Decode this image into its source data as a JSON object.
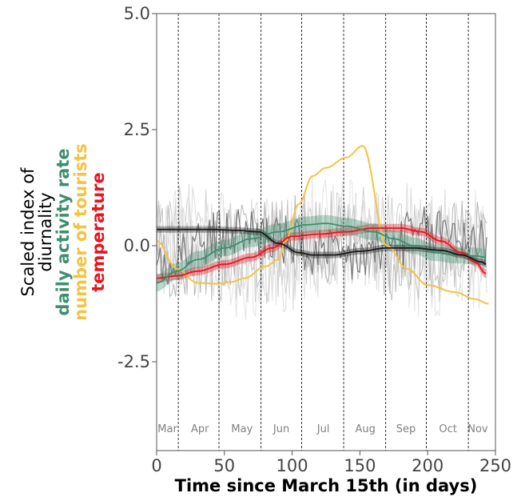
{
  "chart_data": {
    "type": "line",
    "title": "",
    "xlabel": "Time since March 15th (in days)",
    "ylabel_lines": [
      {
        "text": "Scaled index of",
        "color": "#000000",
        "bold": false
      },
      {
        "text": "diurnality",
        "color": "#000000",
        "bold": false
      },
      {
        "text": "daily activity rate",
        "color": "#3d8f6f",
        "bold": true
      },
      {
        "text": "number of tourists",
        "color": "#f5c242",
        "bold": true
      },
      {
        "text": "temperature",
        "color": "#e8141e",
        "bold": true
      }
    ],
    "xlim": [
      0,
      250
    ],
    "ylim": [
      -4.6,
      5.0
    ],
    "xticks": [
      {
        "v": 0,
        "label": "0"
      },
      {
        "v": 50,
        "label": "50"
      },
      {
        "v": 100,
        "label": "100"
      },
      {
        "v": 150,
        "label": "150"
      },
      {
        "v": 200,
        "label": "200"
      },
      {
        "v": 250,
        "label": "250"
      }
    ],
    "yticks": [
      {
        "v": 5.0,
        "label": "5.0"
      },
      {
        "v": 2.5,
        "label": "2.5"
      },
      {
        "v": 0.0,
        "label": "0.0"
      },
      {
        "v": -2.5,
        "label": "-2.5"
      }
    ],
    "grid": false,
    "month_boundaries": [
      16,
      46,
      77,
      107,
      138,
      169,
      199,
      230
    ],
    "month_labels": [
      {
        "x": 8,
        "label": "Mar"
      },
      {
        "x": 32,
        "label": "Apr"
      },
      {
        "x": 63,
        "label": "May"
      },
      {
        "x": 92,
        "label": "Jun"
      },
      {
        "x": 123,
        "label": "Jul"
      },
      {
        "x": 154,
        "label": "Aug"
      },
      {
        "x": 184,
        "label": "Sep"
      },
      {
        "x": 215,
        "label": "Oct"
      },
      {
        "x": 237,
        "label": "Nov"
      }
    ],
    "series": [
      {
        "key": "tourists",
        "color": "#f5c242",
        "x": [
          0,
          15,
          30,
          45,
          55,
          65,
          80,
          90,
          95,
          105,
          115,
          125,
          140,
          152,
          170,
          185,
          200,
          220,
          235,
          245
        ],
        "y": [
          0.1,
          -0.5,
          -0.8,
          -0.82,
          -0.78,
          -0.7,
          -0.45,
          -0.3,
          0.1,
          0.9,
          1.5,
          1.68,
          1.9,
          2.15,
          0.0,
          -0.5,
          -0.85,
          -1.0,
          -1.15,
          -1.25
        ]
      },
      {
        "key": "temperature",
        "color": "#e8141e",
        "band": 0.09,
        "x": [
          0,
          15,
          30,
          50,
          70,
          85,
          100,
          120,
          140,
          160,
          180,
          195,
          210,
          225,
          235,
          243
        ],
        "y": [
          -0.7,
          -0.65,
          -0.55,
          -0.4,
          -0.25,
          -0.05,
          0.2,
          0.25,
          0.3,
          0.38,
          0.38,
          0.3,
          0.1,
          -0.15,
          -0.35,
          -0.6
        ]
      },
      {
        "key": "activity",
        "color": "#3d8f6f",
        "band": 0.18,
        "x": [
          0,
          15,
          30,
          50,
          70,
          90,
          110,
          125,
          140,
          160,
          175,
          190,
          205,
          220,
          235,
          243
        ],
        "y": [
          -0.8,
          -0.55,
          -0.3,
          -0.05,
          0.15,
          0.3,
          0.45,
          0.48,
          0.42,
          0.3,
          0.15,
          0.0,
          -0.15,
          -0.2,
          -0.22,
          -0.25
        ]
      },
      {
        "key": "diurnality",
        "color": "#1a1a1a",
        "band": 0.07,
        "x": [
          0,
          20,
          40,
          60,
          75,
          90,
          105,
          115,
          130,
          150,
          170,
          190,
          210,
          225,
          240,
          243
        ],
        "y": [
          0.35,
          0.35,
          0.35,
          0.33,
          0.3,
          0.05,
          -0.15,
          -0.2,
          -0.2,
          -0.12,
          -0.05,
          -0.05,
          -0.1,
          -0.2,
          -0.35,
          -0.4
        ]
      }
    ]
  }
}
